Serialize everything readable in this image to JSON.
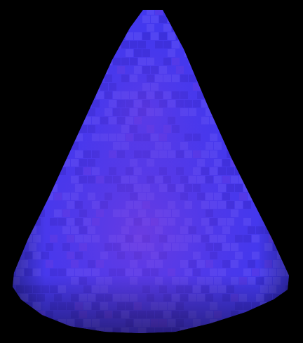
{
  "scene": {
    "background_color": "#000000",
    "object": {
      "kind": "voxel-cone",
      "base_color": "#4338ee",
      "edge_color": "#2a1fb8",
      "highlight_color": "#7a6cff",
      "inner_glow_color": "#8a3fd8"
    }
  }
}
